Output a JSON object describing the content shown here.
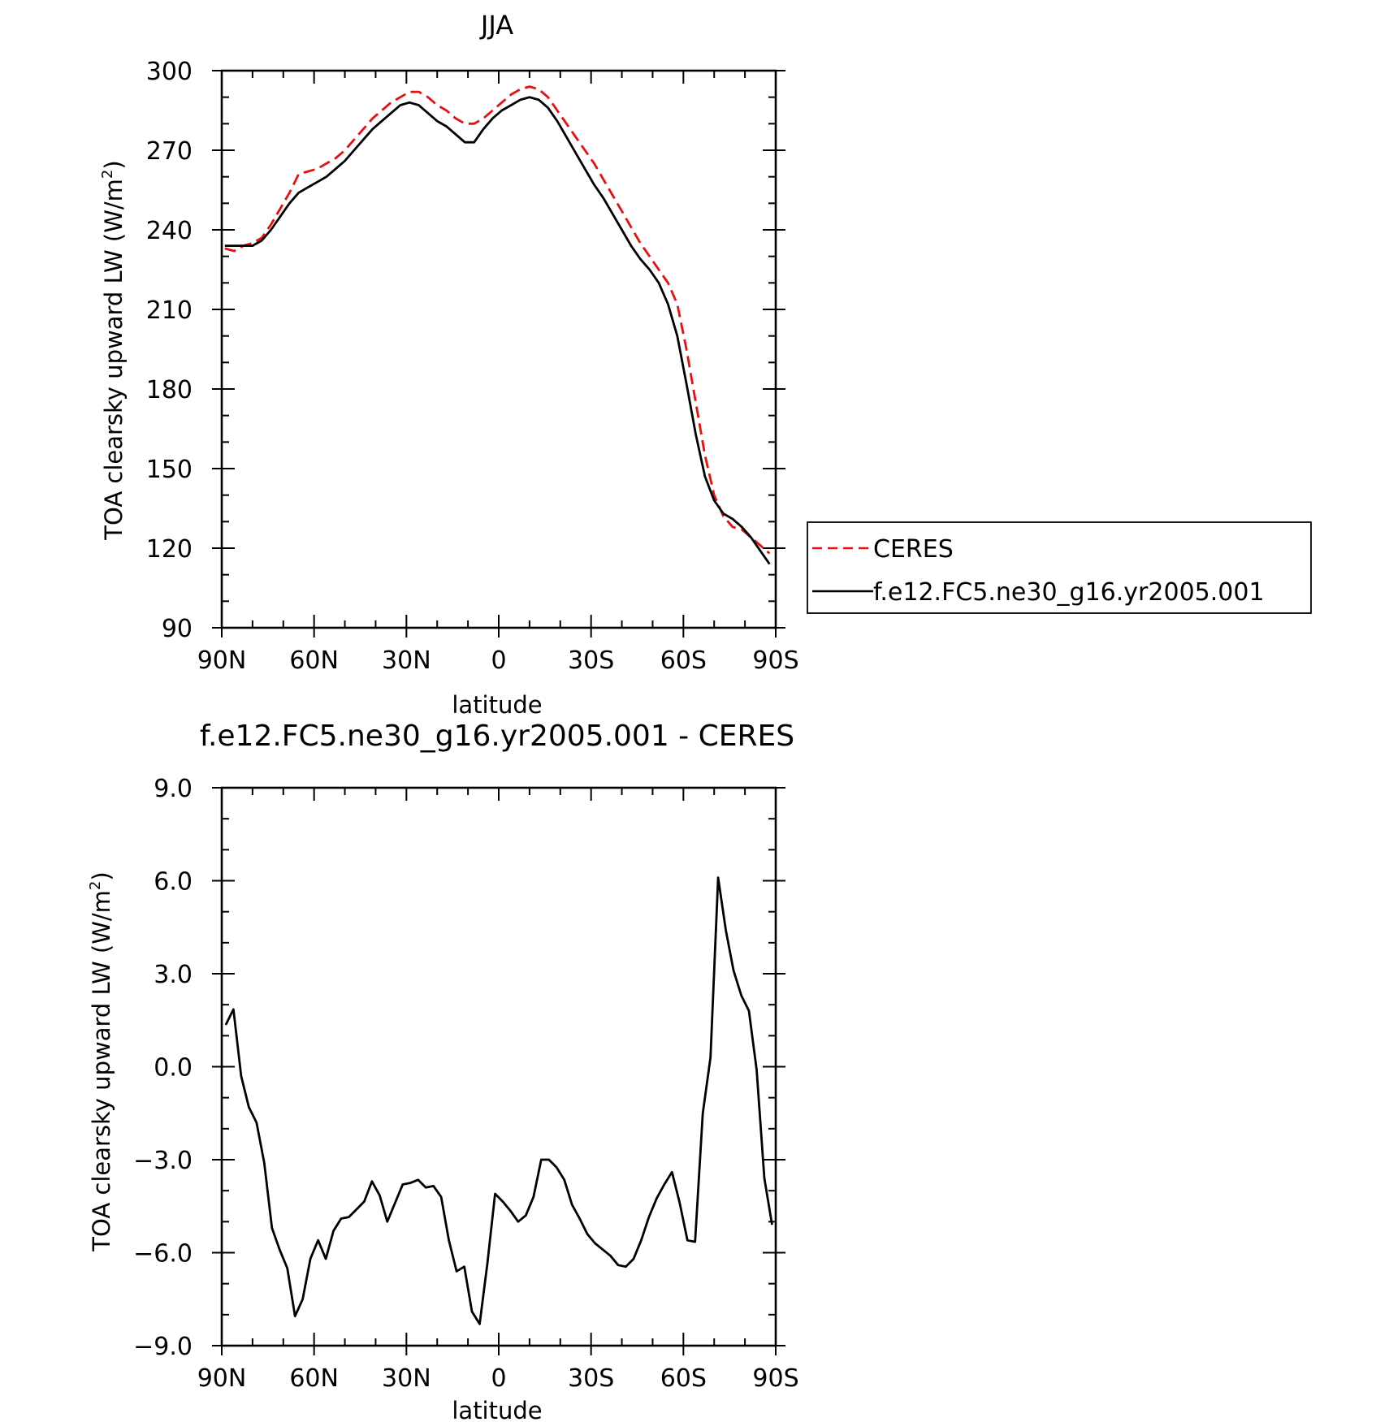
{
  "chart_data": [
    {
      "type": "line",
      "title": "JJA",
      "xlabel": "latitude",
      "ylabel_text": "TOA clearsky upward LW (W/m",
      "ylabel_sup": "2",
      "ylabel_close": ")",
      "xlim": [
        90,
        -90
      ],
      "ylim": [
        90,
        300
      ],
      "x_ticks": [
        {
          "v": 90,
          "label": "90N"
        },
        {
          "v": 60,
          "label": "60N"
        },
        {
          "v": 30,
          "label": "30N"
        },
        {
          "v": 0,
          "label": "0"
        },
        {
          "v": -30,
          "label": "30S"
        },
        {
          "v": -60,
          "label": "60S"
        },
        {
          "v": -90,
          "label": "90S"
        }
      ],
      "y_ticks": [
        {
          "v": 90,
          "label": "90"
        },
        {
          "v": 120,
          "label": "120"
        },
        {
          "v": 150,
          "label": "150"
        },
        {
          "v": 180,
          "label": "180"
        },
        {
          "v": 210,
          "label": "210"
        },
        {
          "v": 240,
          "label": "240"
        },
        {
          "v": 270,
          "label": "270"
        },
        {
          "v": 300,
          "label": "300"
        }
      ],
      "legend_position": "outside-right",
      "series": [
        {
          "name": "CERES",
          "color": "#e8100f",
          "dash": true,
          "x": [
            89,
            86,
            83,
            80,
            77,
            74,
            71,
            68,
            65,
            62,
            59,
            56,
            53,
            50,
            47,
            44,
            41,
            38,
            35,
            32,
            29,
            26,
            23,
            20,
            17,
            14,
            11,
            8,
            5,
            2,
            -1,
            -4,
            -7,
            -10,
            -13,
            -16,
            -19,
            -22,
            -25,
            -28,
            -31,
            -34,
            -37,
            -40,
            -43,
            -46,
            -49,
            -52,
            -55,
            -58,
            -61,
            -64,
            -67,
            -70,
            -73,
            -76,
            -79,
            -82,
            -85,
            -88
          ],
          "y": [
            233,
            232,
            234,
            235,
            237,
            242,
            248,
            254,
            261,
            262,
            263,
            265,
            267,
            270,
            274,
            278,
            282,
            285,
            288,
            290,
            292,
            292,
            290,
            287,
            285,
            282,
            280,
            280,
            282,
            285,
            288,
            291,
            293,
            294,
            293,
            290,
            285,
            280,
            275,
            270,
            265,
            259,
            253,
            247,
            241,
            235,
            230,
            225,
            220,
            212,
            195,
            175,
            155,
            140,
            132,
            128,
            127,
            124,
            121,
            118
          ]
        },
        {
          "name": "f.e12.FC5.ne30_g16.yr2005.001",
          "color": "#000000",
          "dash": false,
          "x": [
            89,
            86,
            83,
            80,
            77,
            74,
            71,
            68,
            65,
            62,
            59,
            56,
            53,
            50,
            47,
            44,
            41,
            38,
            35,
            32,
            29,
            26,
            23,
            20,
            17,
            14,
            11,
            8,
            5,
            2,
            -1,
            -4,
            -7,
            -10,
            -13,
            -16,
            -19,
            -22,
            -25,
            -28,
            -31,
            -34,
            -37,
            -40,
            -43,
            -46,
            -49,
            -52,
            -55,
            -58,
            -61,
            -64,
            -67,
            -70,
            -73,
            -76,
            -79,
            -82,
            -85,
            -88
          ],
          "y": [
            234,
            234,
            234,
            234,
            236,
            240,
            245,
            250,
            254,
            256,
            258,
            260,
            263,
            266,
            270,
            274,
            278,
            281,
            284,
            287,
            288,
            287,
            284,
            281,
            279,
            276,
            273,
            273,
            278,
            282,
            285,
            287,
            289,
            290,
            289,
            286,
            281,
            275,
            269,
            263,
            257,
            252,
            246,
            240,
            234,
            229,
            225,
            220,
            212,
            200,
            182,
            163,
            147,
            138,
            133,
            131,
            128,
            124,
            119,
            114
          ]
        }
      ]
    },
    {
      "type": "line",
      "title": "f.e12.FC5.ne30_g16.yr2005.001 - CERES",
      "xlabel": "latitude",
      "ylabel_text": "TOA clearsky upward LW (W/m",
      "ylabel_sup": "2",
      "ylabel_close": ")",
      "xlim": [
        90,
        -90
      ],
      "ylim": [
        -9,
        9
      ],
      "x_ticks": [
        {
          "v": 90,
          "label": "90N"
        },
        {
          "v": 60,
          "label": "60N"
        },
        {
          "v": 30,
          "label": "30N"
        },
        {
          "v": 0,
          "label": "0"
        },
        {
          "v": -30,
          "label": "30S"
        },
        {
          "v": -60,
          "label": "60S"
        },
        {
          "v": -90,
          "label": "90S"
        }
      ],
      "y_ticks": [
        {
          "v": -9,
          "label": "−9.0"
        },
        {
          "v": -6,
          "label": "−6.0"
        },
        {
          "v": -3,
          "label": "−3.0"
        },
        {
          "v": 0,
          "label": "0.0"
        },
        {
          "v": 3,
          "label": "3.0"
        },
        {
          "v": 6,
          "label": "6.0"
        },
        {
          "v": 9,
          "label": "9.0"
        }
      ],
      "series": [
        {
          "color": "#000000",
          "dash": false,
          "x": [
            88.7,
            86.2,
            83.7,
            81.2,
            78.7,
            76.2,
            73.7,
            71.2,
            68.7,
            66.2,
            63.7,
            61.2,
            58.7,
            56.2,
            53.7,
            51.2,
            48.7,
            46.2,
            43.7,
            41.2,
            38.7,
            36.2,
            33.7,
            31.2,
            28.7,
            26.2,
            23.7,
            21.2,
            18.7,
            16.2,
            13.7,
            11.2,
            8.7,
            6.2,
            3.7,
            1.2,
            -1.3,
            -3.8,
            -6.3,
            -8.8,
            -11.3,
            -13.8,
            -16.3,
            -18.8,
            -21.3,
            -23.8,
            -26.3,
            -28.8,
            -31.3,
            -33.8,
            -36.3,
            -38.8,
            -41.3,
            -43.8,
            -46.3,
            -48.8,
            -51.3,
            -53.8,
            -56.3,
            -58.8,
            -61.3,
            -63.8,
            -66.3,
            -68.8,
            -71.3,
            -73.8,
            -76.3,
            -78.8,
            -81.3,
            -83.8,
            -86.3,
            -88.8
          ],
          "y": [
            1.35,
            1.85,
            -0.3,
            -1.3,
            -1.8,
            -3.1,
            -5.2,
            -5.9,
            -6.5,
            -8.05,
            -7.5,
            -6.2,
            -5.6,
            -6.2,
            -5.3,
            -4.9,
            -4.85,
            -4.6,
            -4.35,
            -3.7,
            -4.15,
            -5.0,
            -4.4,
            -3.8,
            -3.75,
            -3.65,
            -3.9,
            -3.85,
            -4.2,
            -5.6,
            -6.6,
            -6.45,
            -7.9,
            -8.3,
            -6.35,
            -4.1,
            -4.35,
            -4.65,
            -5.0,
            -4.8,
            -4.2,
            -3.0,
            -3.0,
            -3.25,
            -3.65,
            -4.45,
            -4.9,
            -5.4,
            -5.7,
            -5.9,
            -6.1,
            -6.4,
            -6.45,
            -6.2,
            -5.6,
            -4.85,
            -4.25,
            -3.8,
            -3.4,
            -4.4,
            -5.6,
            -5.65,
            -1.5,
            0.3,
            6.1,
            4.4,
            3.1,
            2.3,
            1.8,
            -0.1,
            -3.6,
            -5.1
          ]
        }
      ]
    }
  ]
}
